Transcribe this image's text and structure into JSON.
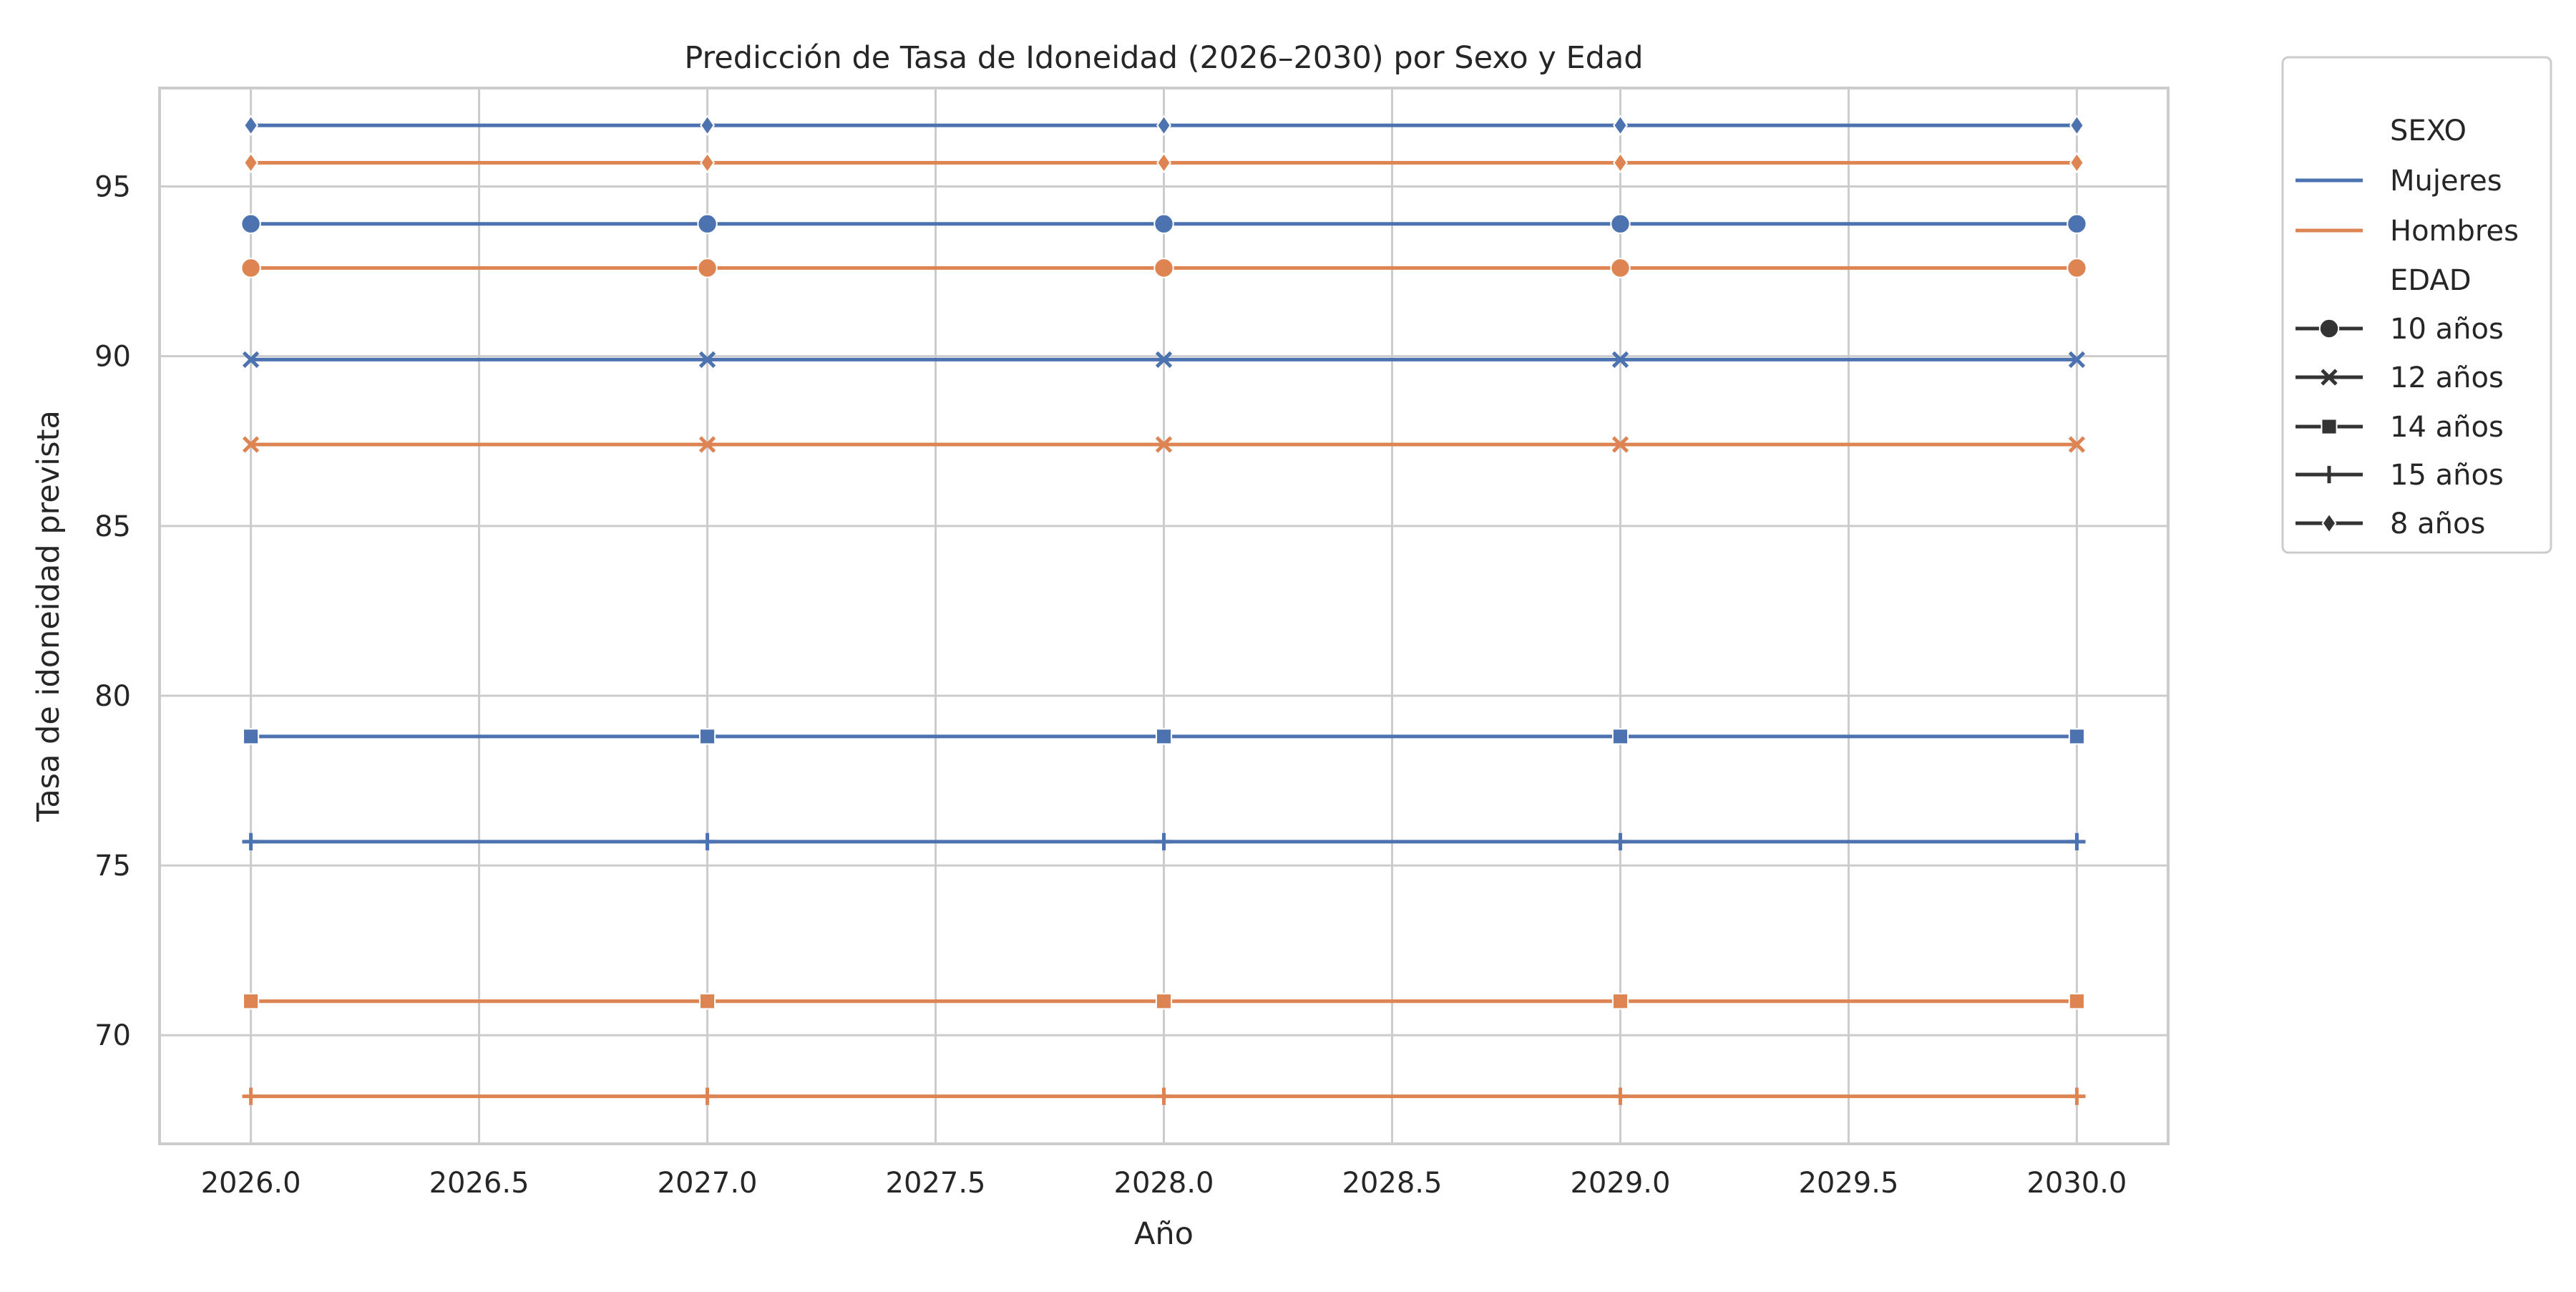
{
  "chart_data": {
    "type": "line",
    "title": "Predicción de Tasa de Idoneidad (2026–2030) por Sexo y Edad",
    "xlabel": "Año",
    "ylabel": "Tasa de idoneidad prevista",
    "xlim": [
      2025.8,
      2030.2
    ],
    "ylim": [
      66.8,
      97.9
    ],
    "x_ticks": [
      2026.0,
      2026.5,
      2027.0,
      2027.5,
      2028.0,
      2028.5,
      2029.0,
      2029.5,
      2030.0
    ],
    "x_tick_labels": [
      "2026.0",
      "2026.5",
      "2027.0",
      "2027.5",
      "2028.0",
      "2028.5",
      "2029.0",
      "2029.5",
      "2030.0"
    ],
    "y_ticks": [
      70,
      75,
      80,
      85,
      90,
      95
    ],
    "y_tick_labels": [
      "70",
      "75",
      "80",
      "85",
      "90",
      "95"
    ],
    "grid": true,
    "legend_position": "outside-right",
    "x": [
      2026,
      2027,
      2028,
      2029,
      2030
    ],
    "colors": {
      "Mujeres": "#4c72b0",
      "Hombres": "#dd8452"
    },
    "legend": {
      "hue_title": "SEXO",
      "hue_entries": [
        "Mujeres",
        "Hombres"
      ],
      "style_title": "EDAD",
      "style_entries": [
        {
          "label": "10 años",
          "marker": "circle"
        },
        {
          "label": "12 años",
          "marker": "x"
        },
        {
          "label": "14 años",
          "marker": "square"
        },
        {
          "label": "15 años",
          "marker": "plus"
        },
        {
          "label": "8 años",
          "marker": "diamond"
        }
      ]
    },
    "series": [
      {
        "sexo": "Mujeres",
        "edad": "8 años",
        "marker": "diamond",
        "values": [
          96.8,
          96.8,
          96.8,
          96.8,
          96.8
        ]
      },
      {
        "sexo": "Hombres",
        "edad": "8 años",
        "marker": "diamond",
        "values": [
          95.7,
          95.7,
          95.7,
          95.7,
          95.7
        ]
      },
      {
        "sexo": "Mujeres",
        "edad": "10 años",
        "marker": "circle",
        "values": [
          93.9,
          93.9,
          93.9,
          93.9,
          93.9
        ]
      },
      {
        "sexo": "Hombres",
        "edad": "10 años",
        "marker": "circle",
        "values": [
          92.6,
          92.6,
          92.6,
          92.6,
          92.6
        ]
      },
      {
        "sexo": "Mujeres",
        "edad": "12 años",
        "marker": "x",
        "values": [
          89.9,
          89.9,
          89.9,
          89.9,
          89.9
        ]
      },
      {
        "sexo": "Hombres",
        "edad": "12 años",
        "marker": "x",
        "values": [
          87.4,
          87.4,
          87.4,
          87.4,
          87.4
        ]
      },
      {
        "sexo": "Mujeres",
        "edad": "14 años",
        "marker": "square",
        "values": [
          78.8,
          78.8,
          78.8,
          78.8,
          78.8
        ]
      },
      {
        "sexo": "Mujeres",
        "edad": "15 años",
        "marker": "plus",
        "values": [
          75.7,
          75.7,
          75.7,
          75.7,
          75.7
        ]
      },
      {
        "sexo": "Hombres",
        "edad": "14 años",
        "marker": "square",
        "values": [
          71.0,
          71.0,
          71.0,
          71.0,
          71.0
        ]
      },
      {
        "sexo": "Hombres",
        "edad": "15 años",
        "marker": "plus",
        "values": [
          68.2,
          68.2,
          68.2,
          68.2,
          68.2
        ]
      }
    ]
  }
}
